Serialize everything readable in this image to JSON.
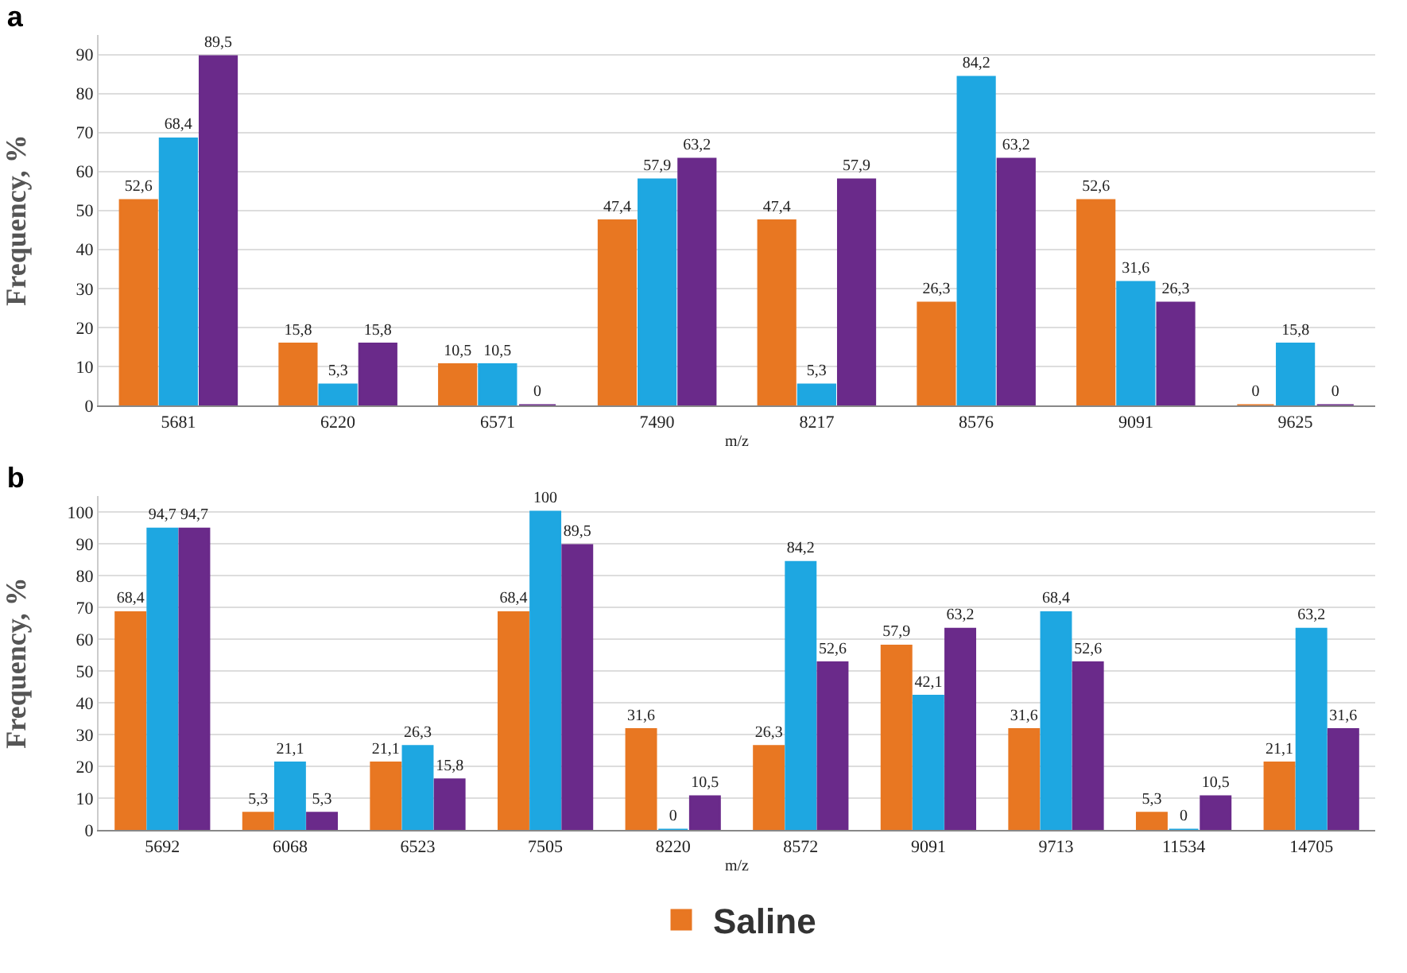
{
  "chart_data": [
    {
      "type": "bar",
      "title": "a",
      "xlabel": "m/z",
      "ylabel": "Frequency, %",
      "categories": [
        "5681",
        "6220",
        "6571",
        "7490",
        "8217",
        "8576",
        "9091",
        "9625"
      ],
      "series": [
        {
          "color": "#e87722",
          "values": [
            52.6,
            15.8,
            10.5,
            47.4,
            47.4,
            26.3,
            52.6,
            0
          ],
          "value_labels": [
            "52,6",
            "15,8",
            "10,5",
            "47,4",
            "47,4",
            "26,3",
            "52,6",
            "0"
          ]
        },
        {
          "color": "#1ea7e1",
          "values": [
            68.4,
            5.3,
            10.5,
            57.9,
            5.3,
            84.2,
            31.6,
            15.8
          ],
          "value_labels": [
            "68,4",
            "5,3",
            "10,5",
            "57,9",
            "5,3",
            "84,2",
            "31,6",
            "15,8"
          ]
        },
        {
          "color": "#6a2a8a",
          "values": [
            89.5,
            15.8,
            0,
            63.2,
            57.9,
            63.2,
            26.3,
            0
          ],
          "value_labels": [
            "89,5",
            "15,8",
            "0",
            "63,2",
            "57,9",
            "63,2",
            "26,3",
            "0"
          ]
        }
      ],
      "ylim": [
        0,
        95
      ],
      "yticks": [
        0,
        10,
        20,
        30,
        40,
        50,
        60,
        70,
        80,
        90
      ],
      "grid": "y"
    },
    {
      "type": "bar",
      "title": "b",
      "xlabel": "m/z",
      "ylabel": "Frequency, %",
      "categories": [
        "5692",
        "6068",
        "6523",
        "7505",
        "8220",
        "8572",
        "9091",
        "9713",
        "11534",
        "14705"
      ],
      "series": [
        {
          "name": "Saline",
          "color": "#e87722",
          "values": [
            68.4,
            5.3,
            21.1,
            68.4,
            31.6,
            26.3,
            57.9,
            31.6,
            5.3,
            21.1
          ],
          "value_labels": [
            "68,4",
            "5,3",
            "21,1",
            "68,4",
            "31,6",
            "26,3",
            "57,9",
            "31,6",
            "5,3",
            "21,1"
          ]
        },
        {
          "color": "#1ea7e1",
          "values": [
            94.7,
            21.1,
            26.3,
            100,
            0,
            84.2,
            42.1,
            68.4,
            0,
            63.2
          ],
          "value_labels": [
            "94,7",
            "21,1",
            "26,3",
            "100",
            "0",
            "84,2",
            "42,1",
            "68,4",
            "0",
            "63,2"
          ]
        },
        {
          "color": "#6a2a8a",
          "values": [
            94.7,
            5.3,
            15.8,
            89.5,
            10.5,
            52.6,
            63.2,
            52.6,
            10.5,
            31.6
          ],
          "value_labels": [
            "94,7",
            "5,3",
            "15,8",
            "89,5",
            "10,5",
            "52,6",
            "63,2",
            "52,6",
            "10,5",
            "31,6"
          ]
        }
      ],
      "ylim": [
        0,
        105
      ],
      "yticks": [
        0,
        10,
        20,
        30,
        40,
        50,
        60,
        70,
        80,
        90,
        100
      ],
      "grid": "y",
      "legend": "bottom"
    }
  ]
}
